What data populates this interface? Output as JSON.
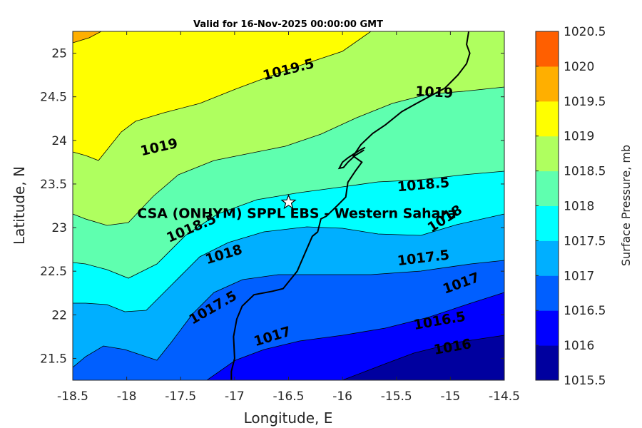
{
  "chart_data": {
    "type": "contourf",
    "title": "Valid for 16-Nov-2025 00:00:00 GMT",
    "xlabel": "Longitude, E",
    "ylabel": "Latitude, N",
    "xlim": [
      -18.5,
      -14.5
    ],
    "ylim": [
      21.25,
      25.25
    ],
    "xticks": [
      "-18.5",
      "-18",
      "-17.5",
      "-17",
      "-16.5",
      "-16",
      "-15.5",
      "-15",
      "-14.5"
    ],
    "yticks": [
      "21.5",
      "22",
      "22.5",
      "23",
      "23.5",
      "24",
      "24.5",
      "25"
    ],
    "colorbar": {
      "label": "Surface Pressure, mb",
      "ticks": [
        "1015.5",
        "1016",
        "1016.5",
        "1017",
        "1017.5",
        "1018",
        "1018.5",
        "1019",
        "1019.5",
        "1020",
        "1020.5"
      ],
      "colors": [
        "#00009f",
        "#0000ff",
        "#005fff",
        "#00afff",
        "#00ffff",
        "#5fffaf",
        "#afff5f",
        "#ffff00",
        "#ffaf00",
        "#ff5f00",
        "#ff0000"
      ]
    },
    "contour_labels": [
      {
        "text": "1019.5",
        "lon": -16.5,
        "lat": 24.81,
        "angle": -14
      },
      {
        "text": "1019",
        "lon": -15.15,
        "lat": 24.55,
        "angle": 3
      },
      {
        "text": "1019",
        "lon": -17.7,
        "lat": 23.92,
        "angle": -13
      },
      {
        "text": "1018.5",
        "lon": -15.25,
        "lat": 23.49,
        "angle": -5
      },
      {
        "text": "1018.5",
        "lon": -17.4,
        "lat": 22.99,
        "angle": -23
      },
      {
        "text": "1018",
        "lon": -15.05,
        "lat": 23.1,
        "angle": -33
      },
      {
        "text": "1018",
        "lon": -17.1,
        "lat": 22.69,
        "angle": -17
      },
      {
        "text": "1017.5",
        "lon": -15.25,
        "lat": 22.65,
        "angle": -7
      },
      {
        "text": "1017.5",
        "lon": -17.2,
        "lat": 22.08,
        "angle": -30
      },
      {
        "text": "1017",
        "lon": -14.9,
        "lat": 22.36,
        "angle": -20
      },
      {
        "text": "1017",
        "lon": -16.65,
        "lat": 21.75,
        "angle": -17
      },
      {
        "text": "1016.5",
        "lon": -15.1,
        "lat": 21.93,
        "angle": -10
      },
      {
        "text": "1016",
        "lon": -14.98,
        "lat": 21.63,
        "angle": -10
      }
    ],
    "site": {
      "name": "CSA (ONHYM) SPPL EBS  - Western Sahara",
      "lon": -16.5,
      "lat": 23.29
    },
    "coastline": [
      [
        -17.03,
        21.25
      ],
      [
        -17.03,
        21.35
      ],
      [
        -17.0,
        21.5
      ],
      [
        -17.01,
        21.75
      ],
      [
        -16.98,
        21.95
      ],
      [
        -16.93,
        22.1
      ],
      [
        -16.82,
        22.23
      ],
      [
        -16.65,
        22.27
      ],
      [
        -16.55,
        22.3
      ],
      [
        -16.42,
        22.5
      ],
      [
        -16.35,
        22.7
      ],
      [
        -16.28,
        22.9
      ],
      [
        -16.23,
        22.95
      ],
      [
        -16.2,
        23.1
      ],
      [
        -16.15,
        23.13
      ],
      [
        -16.05,
        23.25
      ],
      [
        -15.97,
        23.35
      ],
      [
        -15.95,
        23.52
      ],
      [
        -15.88,
        23.65
      ],
      [
        -15.82,
        23.75
      ],
      [
        -15.9,
        23.82
      ],
      [
        -15.83,
        23.95
      ],
      [
        -15.72,
        24.08
      ],
      [
        -15.6,
        24.18
      ],
      [
        -15.45,
        24.33
      ],
      [
        -15.32,
        24.42
      ],
      [
        -15.2,
        24.5
      ],
      [
        -15.05,
        24.6
      ],
      [
        -14.93,
        24.75
      ],
      [
        -14.85,
        24.88
      ],
      [
        -14.82,
        25.0
      ],
      [
        -14.85,
        25.1
      ],
      [
        -14.83,
        25.25
      ]
    ],
    "dakhla_peninsula": [
      [
        -15.79,
        23.92
      ],
      [
        -15.85,
        23.88
      ],
      [
        -15.9,
        23.84
      ],
      [
        -15.95,
        23.8
      ],
      [
        -16.0,
        23.75
      ],
      [
        -16.03,
        23.68
      ],
      [
        -15.99,
        23.69
      ],
      [
        -15.95,
        23.75
      ],
      [
        -15.88,
        23.83
      ],
      [
        -15.8,
        23.89
      ]
    ]
  }
}
